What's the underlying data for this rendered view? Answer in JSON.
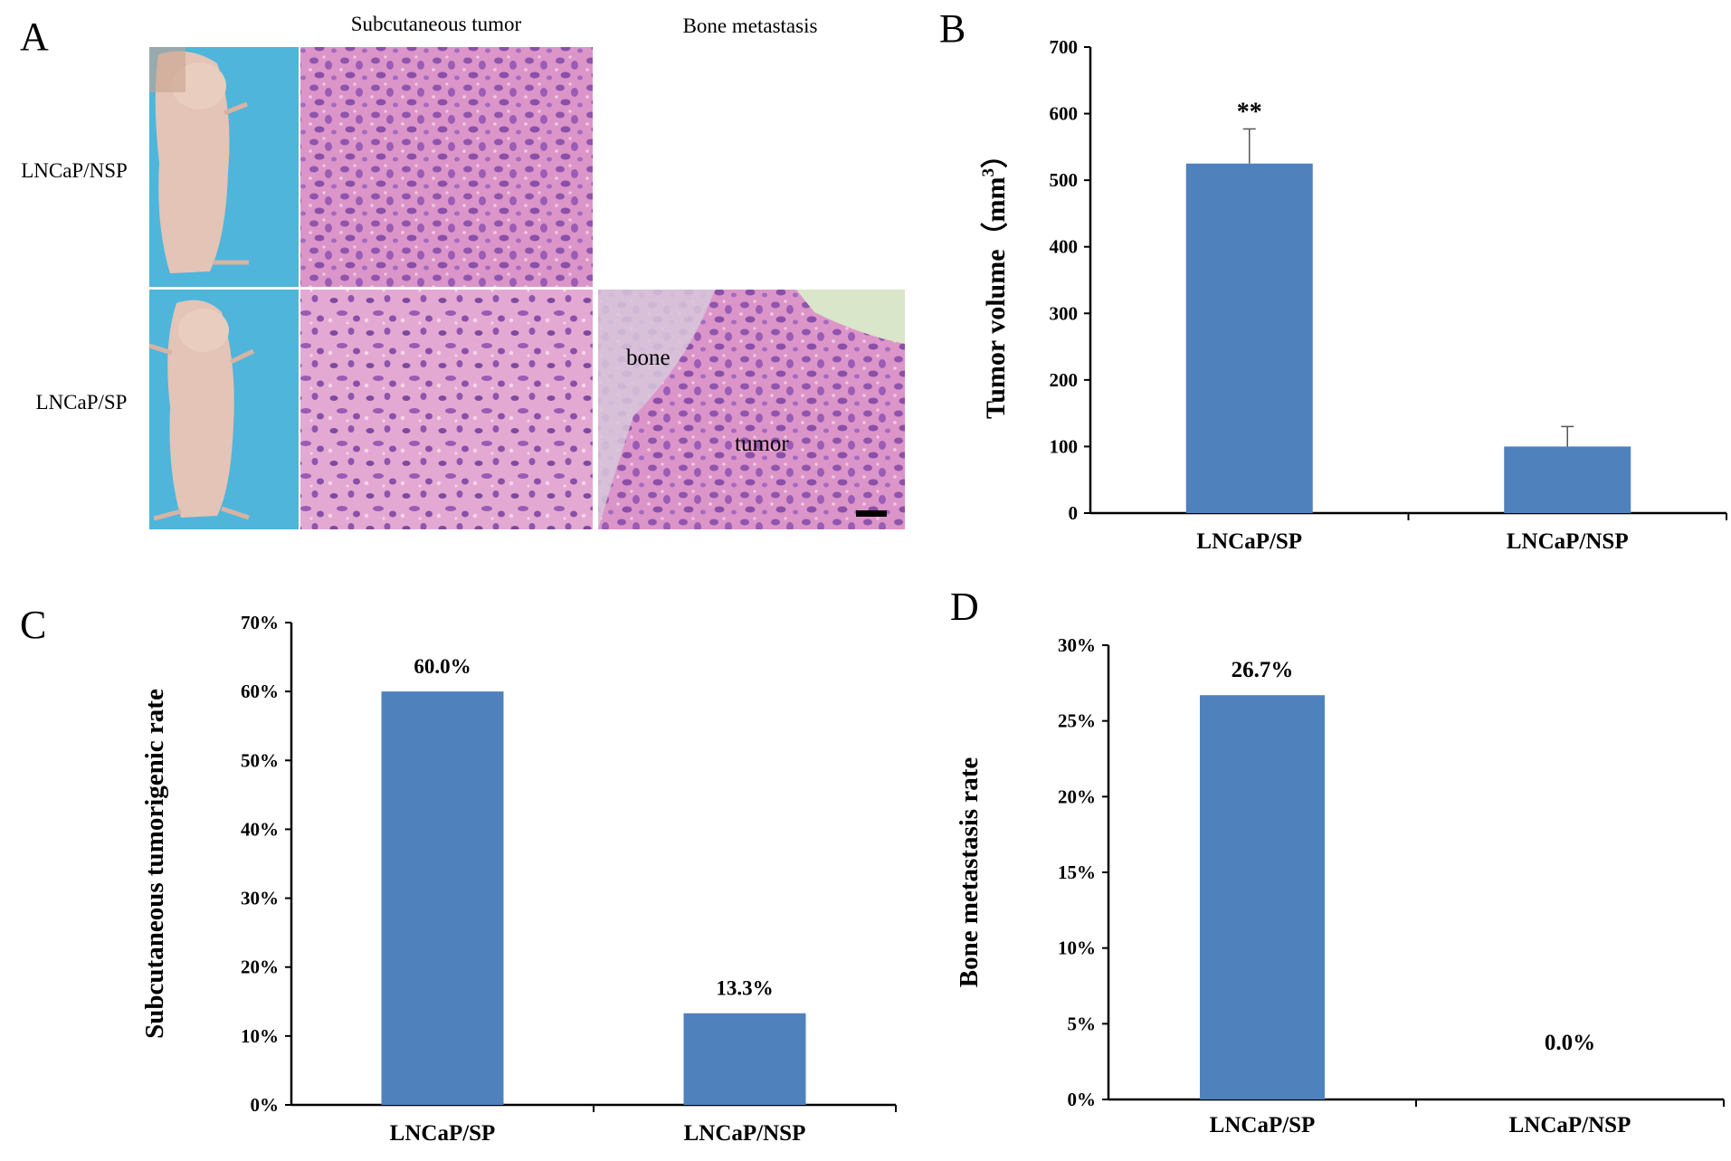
{
  "panels": {
    "A": {
      "letter": "A",
      "col_headers": [
        "Subcutaneous tumor",
        "Bone metastasis"
      ],
      "row_labels": [
        "LNCaP/NSP",
        "LNCaP/SP"
      ],
      "image_labels": {
        "bone": "bone",
        "tumor": "tumor"
      }
    },
    "B": {
      "letter": "B"
    },
    "C": {
      "letter": "C"
    },
    "D": {
      "letter": "D"
    }
  },
  "colors": {
    "bar": "#4f81bd",
    "skin": "#e2c2b4",
    "drape": "#4fb5db",
    "he_stain_light": "#d98fc6",
    "he_stain_dark": "#8a4fa8"
  },
  "chart_data": [
    {
      "id": "B",
      "type": "bar",
      "categories": [
        "LNCaP/SP",
        "LNCaP/NSP"
      ],
      "values": [
        525,
        100
      ],
      "errors": [
        52,
        30
      ],
      "annotations": [
        "**",
        ""
      ],
      "ylabel_main": "Tumor volume（mm",
      "ylabel_sup": "3",
      "ylabel_close": "）",
      "ylim": [
        0,
        700
      ],
      "yticks": [
        0,
        100,
        200,
        300,
        400,
        500,
        600,
        700
      ],
      "yticklabels": [
        "0",
        "100",
        "200",
        "300",
        "400",
        "500",
        "600",
        "700"
      ]
    },
    {
      "id": "C",
      "type": "bar",
      "categories": [
        "LNCaP/SP",
        "LNCaP/NSP"
      ],
      "values": [
        60.0,
        13.3
      ],
      "value_labels": [
        "60.0%",
        "13.3%"
      ],
      "ylabel": "Subcutaneous tumorigenic rate",
      "ylim": [
        0,
        70
      ],
      "yticks": [
        0,
        10,
        20,
        30,
        40,
        50,
        60,
        70
      ],
      "yticklabels": [
        "0%",
        "10%",
        "20%",
        "30%",
        "40%",
        "50%",
        "60%",
        "70%"
      ]
    },
    {
      "id": "D",
      "type": "bar",
      "categories": [
        "LNCaP/SP",
        "LNCaP/NSP"
      ],
      "values": [
        26.7,
        0.0
      ],
      "value_labels": [
        "26.7%",
        "0.0%"
      ],
      "ylabel": "Bone metastasis rate",
      "ylim": [
        0,
        30
      ],
      "yticks": [
        0,
        5,
        10,
        15,
        20,
        25,
        30
      ],
      "yticklabels": [
        "0%",
        "5%",
        "10%",
        "15%",
        "20%",
        "25%",
        "30%"
      ]
    }
  ]
}
